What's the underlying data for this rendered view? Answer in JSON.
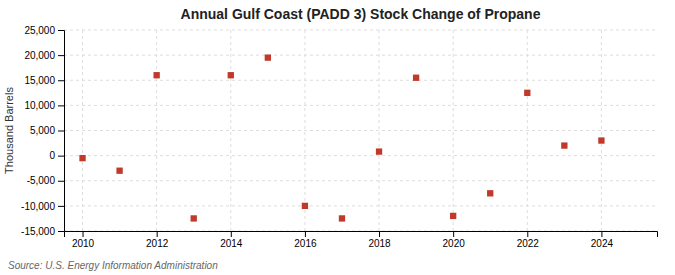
{
  "chart_data": {
    "type": "scatter",
    "title": "Annual Gulf Coast (PADD 3) Stock Change of Propane",
    "ylabel": "Thousand Barrels",
    "source": "Source: U.S. Energy Information Administration",
    "x": [
      2010,
      2011,
      2012,
      2013,
      2014,
      2015,
      2016,
      2017,
      2018,
      2019,
      2020,
      2021,
      2022,
      2023,
      2024
    ],
    "values": [
      -500,
      -3000,
      16000,
      -12500,
      16000,
      19500,
      -10000,
      -12500,
      800,
      15500,
      -12000,
      -7500,
      12500,
      2000,
      3000
    ],
    "color": "#c0392b",
    "marker": "square",
    "xlim": [
      2009.5,
      2025.5
    ],
    "xticks": [
      2010,
      2012,
      2014,
      2016,
      2018,
      2020,
      2022,
      2024
    ],
    "ylim": [
      -15000,
      25000
    ],
    "yticks": [
      {
        "value": -15000,
        "label": "-15,000"
      },
      {
        "value": -10000,
        "label": "-10,000"
      },
      {
        "value": -5000,
        "label": "-5,000"
      },
      0,
      {
        "value": 5000,
        "label": "5,000"
      },
      {
        "value": 10000,
        "label": "10,000"
      },
      {
        "value": 15000,
        "label": "15,000"
      },
      {
        "value": 20000,
        "label": "20,000"
      },
      {
        "value": 25000,
        "label": "25,000"
      }
    ],
    "grid": true
  }
}
